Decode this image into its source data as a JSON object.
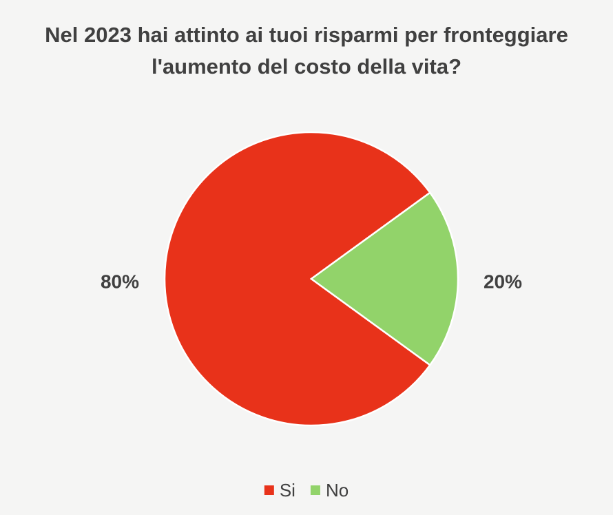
{
  "chart_data": {
    "type": "pie",
    "title": "Nel 2023 hai attinto ai tuoi risparmi per fronteggiare l'aumento del costo della vita?",
    "categories": [
      "Si",
      "No"
    ],
    "values": [
      80,
      20
    ],
    "value_labels": [
      "80%",
      "20%"
    ],
    "colors": [
      "#e8321a",
      "#92d36a"
    ],
    "legend": "bottom"
  }
}
